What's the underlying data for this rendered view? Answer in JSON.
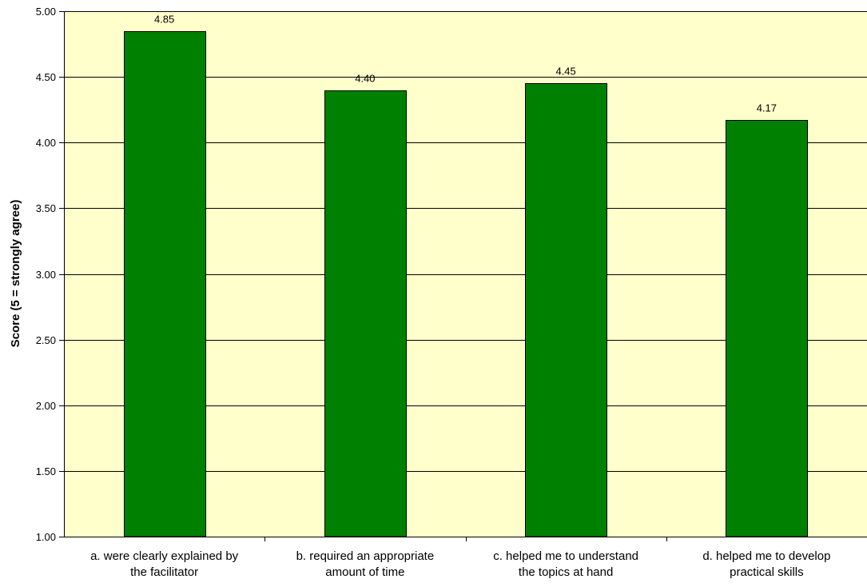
{
  "chart_data": {
    "type": "bar",
    "title": "",
    "xlabel": "",
    "ylabel": "Score (5 = strongly agree)",
    "ylim": [
      1.0,
      5.0
    ],
    "yticks": [
      "1.00",
      "1.50",
      "2.00",
      "2.50",
      "3.00",
      "3.50",
      "4.00",
      "4.50",
      "5.00"
    ],
    "ytick_values": [
      1.0,
      1.5,
      2.0,
      2.5,
      3.0,
      3.5,
      4.0,
      4.5,
      5.0
    ],
    "categories": [
      [
        "a. were clearly explained by",
        "the facilitator"
      ],
      [
        "b. required an appropriate",
        "amount of time"
      ],
      [
        "c. helped me to understand",
        "the topics at hand"
      ],
      [
        "d. helped me to develop",
        "practical skills"
      ]
    ],
    "values": [
      4.85,
      4.4,
      4.45,
      4.17
    ],
    "value_labels": [
      "4.85",
      "4.40",
      "4.45",
      "4.17"
    ],
    "grid": true,
    "legend": "none",
    "colors": {
      "bar": "#008000",
      "bar_border": "#000000",
      "plot_background": "#FFFFCC",
      "gridline": "#000000",
      "axis": "#000000"
    }
  }
}
